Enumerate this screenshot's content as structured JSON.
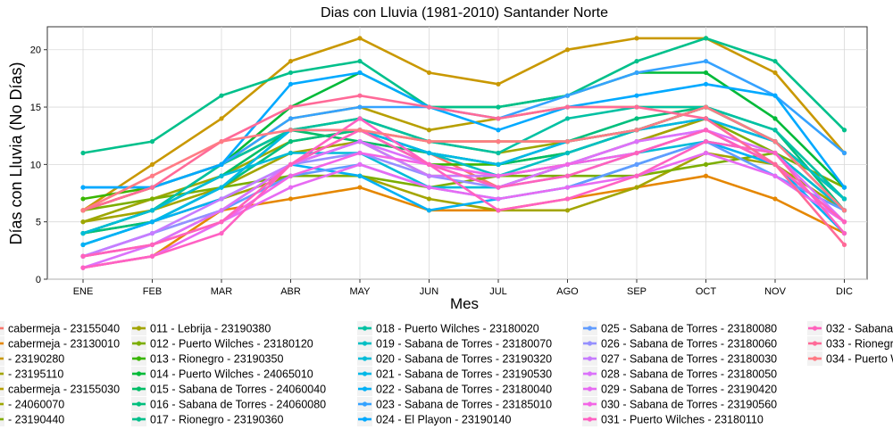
{
  "chart_data": {
    "type": "line",
    "title": "Dias con Lluvia (1981-2010)  Santander Norte",
    "xlabel": "Mes",
    "ylabel": "Días con Lluvia (No Días)",
    "categories": [
      "ENE",
      "FEB",
      "MAR",
      "ABR",
      "MAY",
      "JUN",
      "JUL",
      "AGO",
      "SEP",
      "OCT",
      "NOV",
      "DIC"
    ],
    "ylim": [
      0,
      22
    ],
    "yticks": [
      0,
      5,
      10,
      15,
      20
    ],
    "grid": true,
    "legend_position": "bottom",
    "series": [
      {
        "name": "cabermeja - 23155040",
        "color": "#f8766d",
        "values": [
          2,
          3,
          6,
          10,
          12,
          11,
          8,
          10,
          12,
          14,
          10,
          5
        ]
      },
      {
        "name": "cabermeja - 23130010",
        "color": "#e58700",
        "values": [
          1,
          2,
          6,
          7,
          8,
          6,
          6,
          7,
          8,
          9,
          7,
          4
        ]
      },
      {
        "name": "- 23190280",
        "color": "#c99800",
        "values": [
          6,
          10,
          14,
          19,
          21,
          18,
          17,
          20,
          21,
          21,
          18,
          11
        ]
      },
      {
        "name": "- 23195110",
        "color": "#a3a500",
        "values": [
          5,
          6,
          8,
          11,
          12,
          9,
          9,
          10,
          12,
          14,
          12,
          7
        ]
      },
      {
        "name": "cabermeja - 23155030",
        "color": "#b79f00",
        "values": [
          6,
          8,
          10,
          14,
          15,
          13,
          14,
          15,
          15,
          15,
          12,
          7
        ]
      },
      {
        "name": "- 24060070",
        "color": "#9da700",
        "values": [
          5,
          7,
          9,
          12,
          13,
          12,
          11,
          12,
          13,
          15,
          12,
          7
        ]
      },
      {
        "name": "- 23190440",
        "color": "#82ad00",
        "values": [
          6,
          8,
          10,
          13,
          14,
          12,
          12,
          12,
          13,
          14,
          11,
          6
        ]
      },
      {
        "name": "011 - Lebrija - 23190380",
        "color": "#a3a500",
        "values": [
          4,
          5,
          7,
          9,
          9,
          7,
          6,
          6,
          8,
          11,
          10,
          6
        ]
      },
      {
        "name": "012 - Puerto Wilches - 23180120",
        "color": "#7cae00",
        "values": [
          6,
          7,
          8,
          9,
          9,
          8,
          9,
          9,
          9,
          10,
          11,
          8
        ]
      },
      {
        "name": "013 - Rionegro - 23190350",
        "color": "#39b600",
        "values": [
          7,
          8,
          10,
          13,
          13,
          10,
          10,
          11,
          13,
          15,
          12,
          7
        ]
      },
      {
        "name": "014 - Puerto Wilches - 24065010",
        "color": "#00ba38",
        "values": [
          4,
          6,
          10,
          15,
          18,
          15,
          15,
          16,
          18,
          18,
          14,
          8
        ]
      },
      {
        "name": "015 - Sabana de Torres - 24060040",
        "color": "#00be67",
        "values": [
          4,
          6,
          9,
          13,
          12,
          11,
          10,
          11,
          13,
          15,
          12,
          7
        ]
      },
      {
        "name": "016 - Sabana de Torres - 24060080",
        "color": "#00bf7d",
        "values": [
          4,
          5,
          8,
          12,
          13,
          11,
          10,
          12,
          14,
          15,
          13,
          6
        ]
      },
      {
        "name": "017 - Rionegro - 23190360",
        "color": "#00c08b",
        "values": [
          11,
          12,
          16,
          18,
          19,
          15,
          15,
          16,
          19,
          21,
          19,
          13
        ]
      },
      {
        "name": "018 - Puerto Wilches - 23180020",
        "color": "#00c1a3",
        "values": [
          4,
          6,
          10,
          13,
          14,
          12,
          11,
          14,
          15,
          15,
          13,
          7
        ]
      },
      {
        "name": "019 - Sabana de Torres - 23180070",
        "color": "#00bfc4",
        "values": [
          3,
          5,
          8,
          13,
          13,
          11,
          9,
          11,
          13,
          15,
          12,
          7
        ]
      },
      {
        "name": "020 - Sabana de Torres - 23190320",
        "color": "#00bcd8",
        "values": [
          4,
          6,
          9,
          11,
          11,
          8,
          8,
          10,
          11,
          12,
          11,
          6
        ]
      },
      {
        "name": "021 - Sabana de Torres - 23190530",
        "color": "#00b8e7",
        "values": [
          3,
          5,
          8,
          13,
          13,
          11,
          10,
          12,
          13,
          14,
          12,
          6
        ]
      },
      {
        "name": "022 - Sabana de Torres - 23180040",
        "color": "#00b0f6",
        "values": [
          3,
          5,
          7,
          10,
          9,
          6,
          7,
          8,
          10,
          12,
          10,
          4
        ]
      },
      {
        "name": "023 - Sabana de Torres - 23185010",
        "color": "#35a2ff",
        "values": [
          8,
          8,
          10,
          14,
          15,
          15,
          14,
          16,
          18,
          19,
          16,
          11
        ]
      },
      {
        "name": "024 - El Playon - 23190140",
        "color": "#00a9ff",
        "values": [
          8,
          8,
          10,
          17,
          18,
          15,
          13,
          15,
          16,
          17,
          16,
          8
        ]
      },
      {
        "name": "025 - Sabana de Torres - 23180080",
        "color": "#619cff",
        "values": [
          2,
          4,
          6,
          9,
          10,
          8,
          7,
          8,
          10,
          12,
          9,
          6
        ]
      },
      {
        "name": "026 - Sabana de Torres - 23180060",
        "color": "#9590ff",
        "values": [
          2,
          4,
          6,
          10,
          11,
          9,
          8,
          9,
          11,
          13,
          10,
          5
        ]
      },
      {
        "name": "027 - Sabana de Torres - 23180030",
        "color": "#c77cff",
        "values": [
          2,
          4,
          7,
          10,
          12,
          9,
          9,
          10,
          12,
          13,
          10,
          5
        ]
      },
      {
        "name": "028 - Sabana de Torres - 23180050",
        "color": "#db72fb",
        "values": [
          1,
          3,
          6,
          10,
          12,
          10,
          8,
          10,
          12,
          13,
          11,
          5
        ]
      },
      {
        "name": "029 - Sabana de Torres - 23190420",
        "color": "#e76bf3",
        "values": [
          1,
          2,
          5,
          8,
          10,
          8,
          7,
          8,
          9,
          11,
          9,
          5
        ]
      },
      {
        "name": "030 - Sabana de Torres - 23190560",
        "color": "#f365e6",
        "values": [
          2,
          3,
          5,
          9,
          11,
          10,
          9,
          10,
          11,
          13,
          10,
          5
        ]
      },
      {
        "name": "031 - Puerto Wilches - 23180110",
        "color": "#ff61c3",
        "values": [
          1,
          2,
          4,
          10,
          14,
          10,
          6,
          7,
          9,
          12,
          11,
          4
        ]
      },
      {
        "name": "032 - Sabana",
        "color": "#ff62bc",
        "values": [
          2,
          3,
          5,
          10,
          13,
          10,
          8,
          9,
          11,
          13,
          10,
          5
        ]
      },
      {
        "name": "033 - Rionegr",
        "color": "#ff6a98",
        "values": [
          6,
          8,
          12,
          15,
          16,
          15,
          14,
          15,
          15,
          14,
          10,
          3
        ]
      },
      {
        "name": "034 - Puerto W",
        "color": "#ff7b85",
        "values": [
          6,
          9,
          12,
          13,
          13,
          12,
          12,
          12,
          13,
          15,
          12,
          6
        ]
      }
    ],
    "legend_columns": [
      [
        "cabermeja - 23155040",
        "cabermeja - 23130010",
        "- 23190280",
        "- 23195110",
        "cabermeja - 23155030",
        "- 24060070",
        "- 23190440"
      ],
      [
        "011 - Lebrija - 23190380",
        "012 - Puerto Wilches - 23180120",
        "013 - Rionegro - 23190350",
        "014 - Puerto Wilches - 24065010",
        "015 - Sabana de Torres - 24060040",
        "016 - Sabana de Torres - 24060080",
        "017 - Rionegro - 23190360"
      ],
      [
        "018 - Puerto Wilches - 23180020",
        "019 - Sabana de Torres - 23180070",
        "020 - Sabana de Torres - 23190320",
        "021 - Sabana de Torres - 23190530",
        "022 - Sabana de Torres - 23180040",
        "023 - Sabana de Torres - 23185010",
        "024 - El Playon - 23190140"
      ],
      [
        "025 - Sabana de Torres - 23180080",
        "026 - Sabana de Torres - 23180060",
        "027 - Sabana de Torres - 23180030",
        "028 - Sabana de Torres - 23180050",
        "029 - Sabana de Torres - 23190420",
        "030 - Sabana de Torres - 23190560",
        "031 - Puerto Wilches - 23180110"
      ],
      [
        "032 - Sabana",
        "033 - Rionegr",
        "034 - Puerto W"
      ]
    ]
  }
}
